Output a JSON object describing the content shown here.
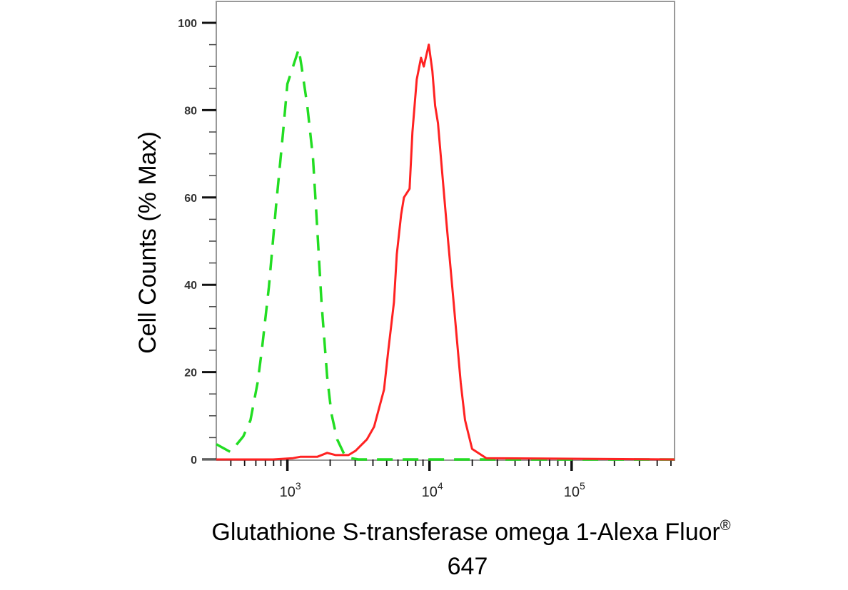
{
  "chart_data": {
    "type": "line",
    "title": "",
    "xlabel": "Glutathione S-transferase omega 1-Alexa Fluor",
    "xlabel_superscript": "®",
    "xlabel_line2": "647",
    "ylabel": "Cell Counts (% Max)",
    "x_scale": "log",
    "xlim": [
      316,
      530000
    ],
    "ylim": [
      0,
      100
    ],
    "x_tick_labels": [
      {
        "base": "10",
        "exp": "3",
        "value": 1000
      },
      {
        "base": "10",
        "exp": "4",
        "value": 10000
      },
      {
        "base": "10",
        "exp": "5",
        "value": 100000
      }
    ],
    "y_ticks": [
      "0",
      "20",
      "40",
      "60",
      "80",
      "100"
    ],
    "grid": false,
    "legend": "none",
    "series": [
      {
        "color": "#22dd22",
        "style": "dashed",
        "x": [
          316,
          398,
          490,
          550,
          617,
          661,
          741,
          832,
          933,
          1000,
          1202,
          1259,
          1380,
          1514,
          1622,
          1738,
          1905,
          2042,
          2239,
          2570,
          3162,
          530000
        ],
        "y": [
          3.5,
          1.7,
          5.3,
          9,
          17.6,
          25,
          39.5,
          58,
          75,
          86,
          94,
          90,
          81,
          69,
          53,
          36,
          19,
          10.5,
          4.6,
          0.5,
          0,
          0
        ]
      },
      {
        "color": "#ff2222",
        "style": "solid",
        "x": [
          316,
          794,
          1096,
          1230,
          1622,
          1905,
          2188,
          2692,
          3020,
          3631,
          4074,
          4786,
          5129,
          5623,
          5888,
          6310,
          6607,
          7244,
          7586,
          8128,
          8710,
          9120,
          9890,
          10470,
          10960,
          11480,
          13180,
          14790,
          16600,
          17780,
          19950,
          25120,
          530000
        ],
        "y": [
          0,
          0,
          0.3,
          0.6,
          0.6,
          1.5,
          1,
          1,
          2,
          4.6,
          7.5,
          16,
          25,
          36,
          47,
          56,
          60,
          62,
          75,
          87,
          92,
          90,
          95,
          89,
          81,
          77,
          54,
          36,
          17.5,
          9,
          2.4,
          0.3,
          0
        ]
      }
    ]
  }
}
